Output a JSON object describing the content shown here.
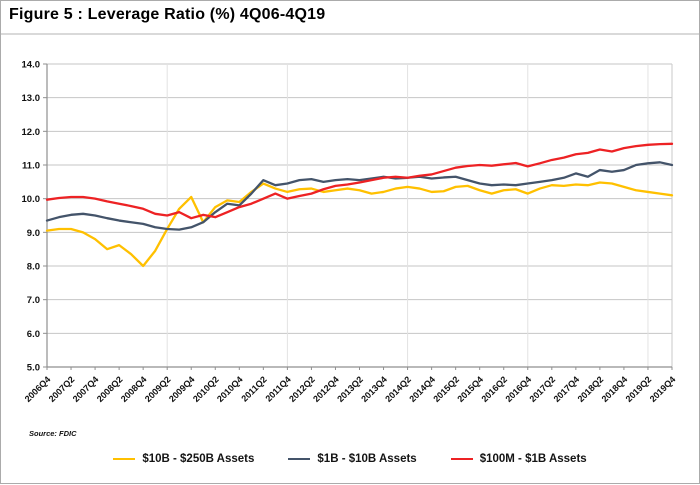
{
  "title": "Figure 5 : Leverage Ratio (%) 4Q06-4Q19",
  "source": "Source: FDIC",
  "chart_data": {
    "type": "line",
    "title": "Figure 5 : Leverage Ratio (%) 4Q06-4Q19",
    "xlabel": "",
    "ylabel": "",
    "ylim": [
      5.0,
      14.0
    ],
    "ytick_step": 1.0,
    "y_tick_labels": [
      "14.0",
      "13.0",
      "12.0",
      "11.0",
      "10.0",
      "9.0",
      "8.0",
      "7.0",
      "6.0",
      "5.0"
    ],
    "x_tick_every": 2,
    "grid": {
      "horizontal": true,
      "vertical_at": [
        "2009Q2",
        "2011Q4",
        "2014Q2",
        "2016Q4",
        "2019Q2"
      ]
    },
    "legend_position": "bottom",
    "x": [
      "2006Q4",
      "2007Q1",
      "2007Q2",
      "2007Q3",
      "2007Q4",
      "2008Q1",
      "2008Q2",
      "2008Q3",
      "2008Q4",
      "2009Q1",
      "2009Q2",
      "2009Q3",
      "2009Q4",
      "2010Q1",
      "2010Q2",
      "2010Q3",
      "2010Q4",
      "2011Q1",
      "2011Q2",
      "2011Q3",
      "2011Q4",
      "2012Q1",
      "2012Q2",
      "2012Q3",
      "2012Q4",
      "2013Q1",
      "2013Q2",
      "2013Q3",
      "2013Q4",
      "2014Q1",
      "2014Q2",
      "2014Q3",
      "2014Q4",
      "2015Q1",
      "2015Q2",
      "2015Q3",
      "2015Q4",
      "2016Q1",
      "2016Q2",
      "2016Q3",
      "2016Q4",
      "2017Q1",
      "2017Q2",
      "2017Q3",
      "2017Q4",
      "2018Q1",
      "2018Q2",
      "2018Q3",
      "2018Q4",
      "2019Q1",
      "2019Q2",
      "2019Q3",
      "2019Q4"
    ],
    "series": [
      {
        "name": "$10B - $250B Assets",
        "color": "#FFC000",
        "values": [
          9.05,
          9.1,
          9.1,
          9.0,
          8.8,
          8.5,
          8.62,
          8.35,
          8.0,
          8.45,
          9.1,
          9.7,
          10.05,
          9.3,
          9.75,
          9.95,
          9.9,
          10.2,
          10.45,
          10.3,
          10.2,
          10.28,
          10.3,
          10.2,
          10.25,
          10.3,
          10.25,
          10.15,
          10.2,
          10.3,
          10.35,
          10.3,
          10.2,
          10.22,
          10.35,
          10.38,
          10.25,
          10.15,
          10.25,
          10.28,
          10.15,
          10.3,
          10.4,
          10.38,
          10.42,
          10.4,
          10.48,
          10.45,
          10.35,
          10.25,
          10.2,
          10.15,
          10.1
        ]
      },
      {
        "name": "$1B - $10B Assets",
        "color": "#44546A",
        "values": [
          9.35,
          9.45,
          9.52,
          9.55,
          9.5,
          9.42,
          9.35,
          9.3,
          9.25,
          9.15,
          9.1,
          9.08,
          9.15,
          9.3,
          9.6,
          9.85,
          9.8,
          10.15,
          10.55,
          10.4,
          10.45,
          10.55,
          10.58,
          10.5,
          10.55,
          10.58,
          10.55,
          10.6,
          10.65,
          10.6,
          10.62,
          10.65,
          10.6,
          10.63,
          10.65,
          10.55,
          10.45,
          10.4,
          10.42,
          10.4,
          10.45,
          10.5,
          10.55,
          10.62,
          10.75,
          10.65,
          10.85,
          10.8,
          10.85,
          11.0,
          11.05,
          11.08,
          11.0
        ]
      },
      {
        "name": "$100M - $1B Assets",
        "color": "#ED2224",
        "values": [
          9.97,
          10.02,
          10.05,
          10.05,
          10.0,
          9.92,
          9.85,
          9.78,
          9.7,
          9.55,
          9.5,
          9.6,
          9.42,
          9.52,
          9.45,
          9.6,
          9.75,
          9.85,
          10.0,
          10.15,
          10.0,
          10.08,
          10.15,
          10.28,
          10.38,
          10.42,
          10.48,
          10.55,
          10.62,
          10.65,
          10.62,
          10.68,
          10.72,
          10.82,
          10.92,
          10.97,
          11.0,
          10.98,
          11.02,
          11.06,
          10.96,
          11.05,
          11.15,
          11.22,
          11.32,
          11.36,
          11.46,
          11.4,
          11.5,
          11.56,
          11.6,
          11.62,
          11.63
        ]
      }
    ],
    "style_colors": {
      "gridline": "#c6c6c6",
      "vertical_gridline": "#e2e2e2",
      "axis": "#8f8f8f",
      "plot_right_border": "#c9c9c9",
      "tick_label": "#111111"
    }
  }
}
